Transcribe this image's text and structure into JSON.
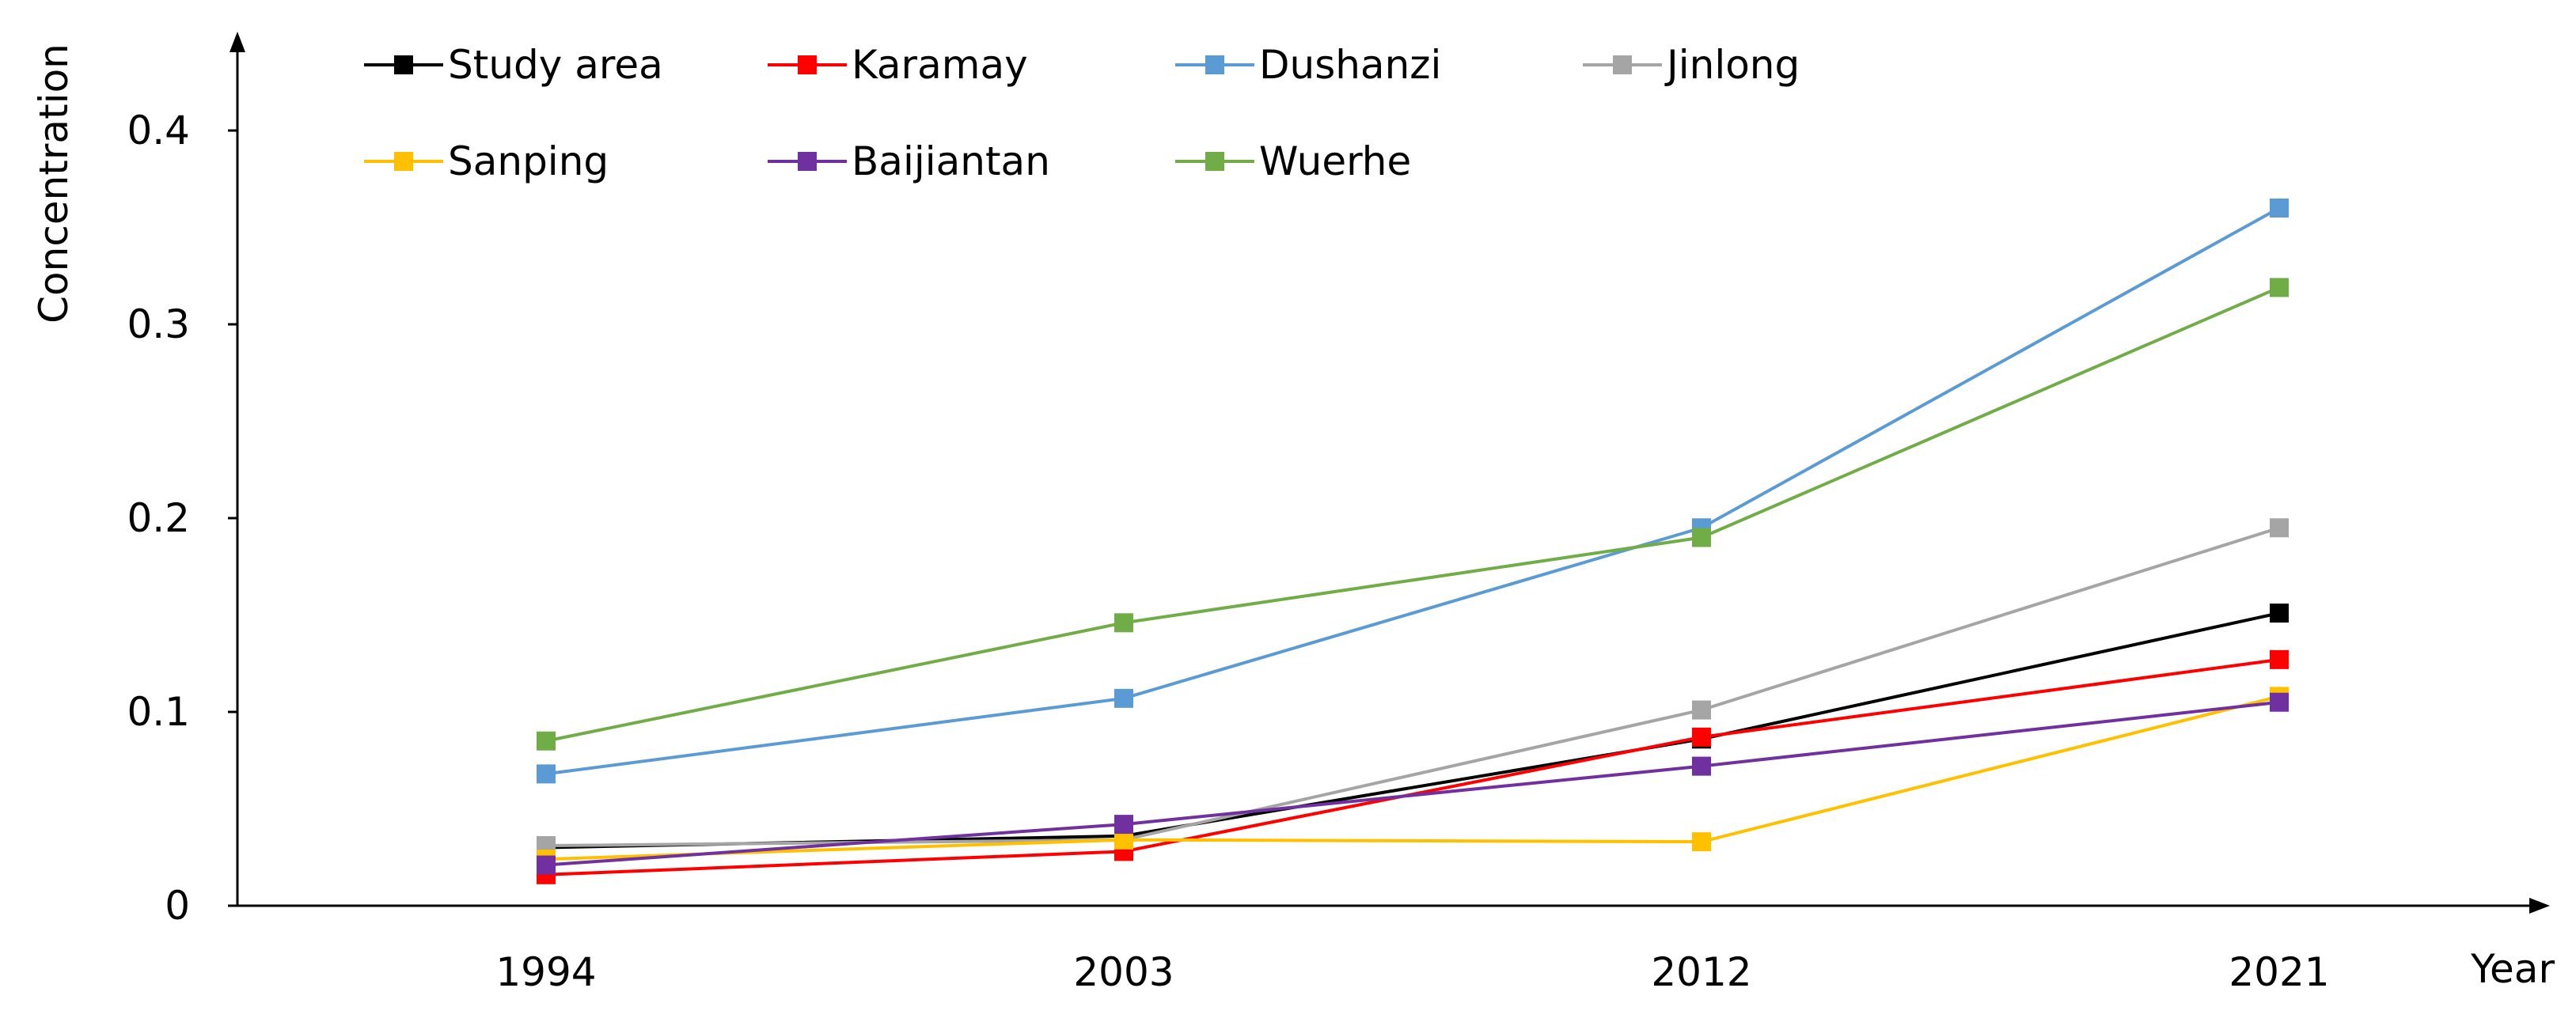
{
  "chart_data": {
    "type": "line",
    "title": "",
    "xlabel": "Year",
    "ylabel": "Concentration",
    "categories": [
      "1994",
      "2003",
      "2012",
      "2021"
    ],
    "yticks": [
      "0",
      "0.1",
      "0.2",
      "0.3",
      "0.4"
    ],
    "ylim": [
      0,
      0.45
    ],
    "grid": false,
    "legend_position": "top-left",
    "series": [
      {
        "name": "Study area",
        "color": "#000000",
        "values": [
          0.03,
          0.036,
          0.086,
          0.151
        ]
      },
      {
        "name": "Karamay",
        "color": "#ff0000",
        "values": [
          0.016,
          0.028,
          0.087,
          0.127
        ]
      },
      {
        "name": "Dushanzi",
        "color": "#5b9bd5",
        "values": [
          0.068,
          0.107,
          0.195,
          0.36
        ]
      },
      {
        "name": "Jinlong",
        "color": "#a5a5a5",
        "values": [
          0.031,
          0.034,
          0.101,
          0.195
        ]
      },
      {
        "name": "Sanping",
        "color": "#ffc000",
        "values": [
          0.024,
          0.034,
          0.033,
          0.108
        ]
      },
      {
        "name": "Baijiantan",
        "color": "#7030a0",
        "values": [
          0.021,
          0.042,
          0.072,
          0.105
        ]
      },
      {
        "name": "Wuerhe",
        "color": "#70ad47",
        "values": [
          0.085,
          0.146,
          0.19,
          0.319
        ]
      }
    ]
  }
}
